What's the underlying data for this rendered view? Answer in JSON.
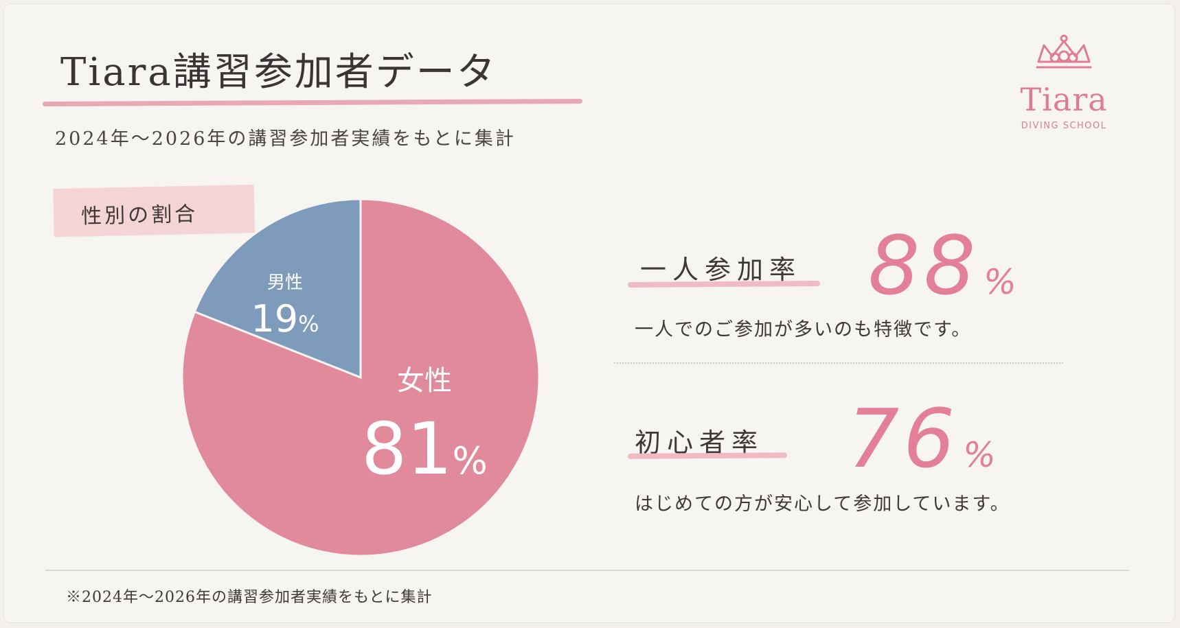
{
  "header": {
    "title": "Tiara講習参加者データ",
    "subtitle": "2024年〜2026年の講習参加者実績をもとに集計"
  },
  "logo": {
    "name": "Tiara",
    "sub": "DIVING SCHOOL",
    "icon": "tiara-crown-icon"
  },
  "section": {
    "gender_title": "性別の割合"
  },
  "chart_data": {
    "type": "pie",
    "categories": [
      "男性",
      "女性"
    ],
    "values": [
      19,
      81
    ],
    "labels": [
      {
        "name": "男性",
        "value": "19",
        "unit": "%"
      },
      {
        "name": "女性",
        "value": "81",
        "unit": "%"
      }
    ],
    "colors": [
      "#7f9bbb",
      "#e08a9c"
    ]
  },
  "stats": [
    {
      "label": "一人参加率",
      "value": "88",
      "unit": "%",
      "desc": "一人でのご参加が多いのも特徴です。"
    },
    {
      "label": "初心者率",
      "value": "76",
      "unit": "%",
      "desc": "はじめての方が安心して参加しています。"
    }
  ],
  "footer": {
    "note": "※2024年〜2026年の講習参加者実績をもとに集計"
  },
  "colors": {
    "accent": "#e37f96",
    "male": "#7f9bbb",
    "female": "#e08a9c",
    "background": "#f7f5f1"
  }
}
